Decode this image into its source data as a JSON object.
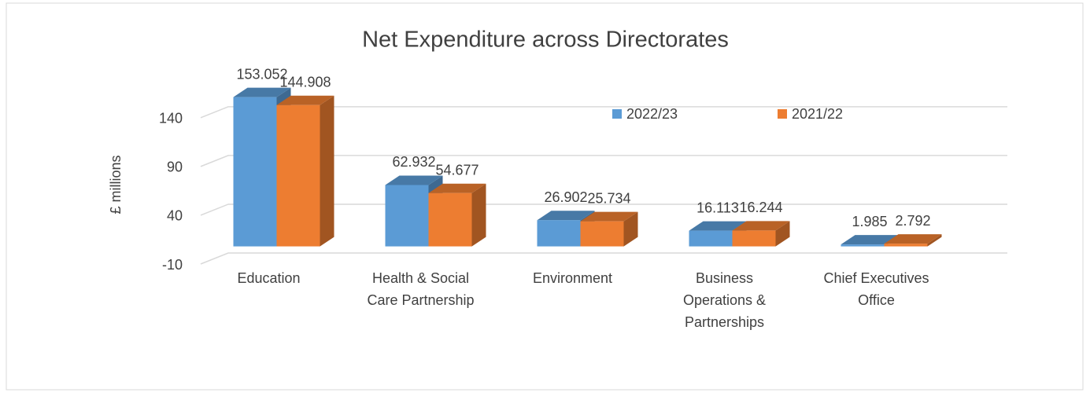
{
  "chart_data": {
    "type": "bar3d",
    "title": "Net Expenditure across Directorates",
    "ylabel": "£ millions",
    "categories": [
      "Education",
      "Health & Social Care Partnership",
      "Environment",
      "Business Operations & Partnerships",
      "Chief Executives Office"
    ],
    "series": [
      {
        "name": "2022/23",
        "color": "#5b9bd5",
        "values": [
          153.052,
          62.932,
          26.902,
          16.113,
          1.985
        ]
      },
      {
        "name": "2021/22",
        "color": "#ed7d31",
        "values": [
          144.908,
          54.677,
          25.734,
          16.244,
          2.792
        ]
      }
    ],
    "ylim": [
      -10,
      160
    ],
    "yticks": [
      -10,
      40,
      90,
      140
    ],
    "grid": true,
    "legend": "top-right"
  }
}
